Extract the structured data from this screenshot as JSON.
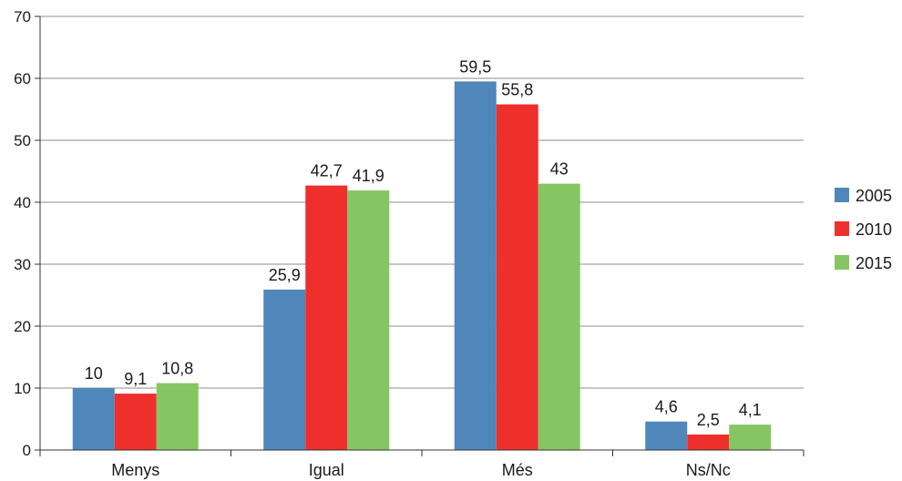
{
  "chart_data": {
    "type": "bar",
    "categories": [
      "Menys",
      "Igual",
      "Més",
      "Ns/Nc"
    ],
    "series": [
      {
        "name": "2005",
        "color": "#4f87ba",
        "values": [
          10,
          25.9,
          59.5,
          4.6
        ],
        "labels": [
          "10",
          "25,9",
          "59,5",
          "4,6"
        ]
      },
      {
        "name": "2010",
        "color": "#ee2f2b",
        "values": [
          9.1,
          42.7,
          55.8,
          2.5
        ],
        "labels": [
          "9,1",
          "42,7",
          "55,8",
          "2,5"
        ]
      },
      {
        "name": "2015",
        "color": "#86c662",
        "values": [
          10.8,
          41.9,
          43,
          4.1
        ],
        "labels": [
          "10,8",
          "41,9",
          "43",
          "4,1"
        ]
      }
    ],
    "ylim": [
      0,
      70
    ],
    "yticks": [
      0,
      10,
      20,
      30,
      40,
      50,
      60,
      70
    ],
    "grid": true,
    "legend_position": "right"
  }
}
